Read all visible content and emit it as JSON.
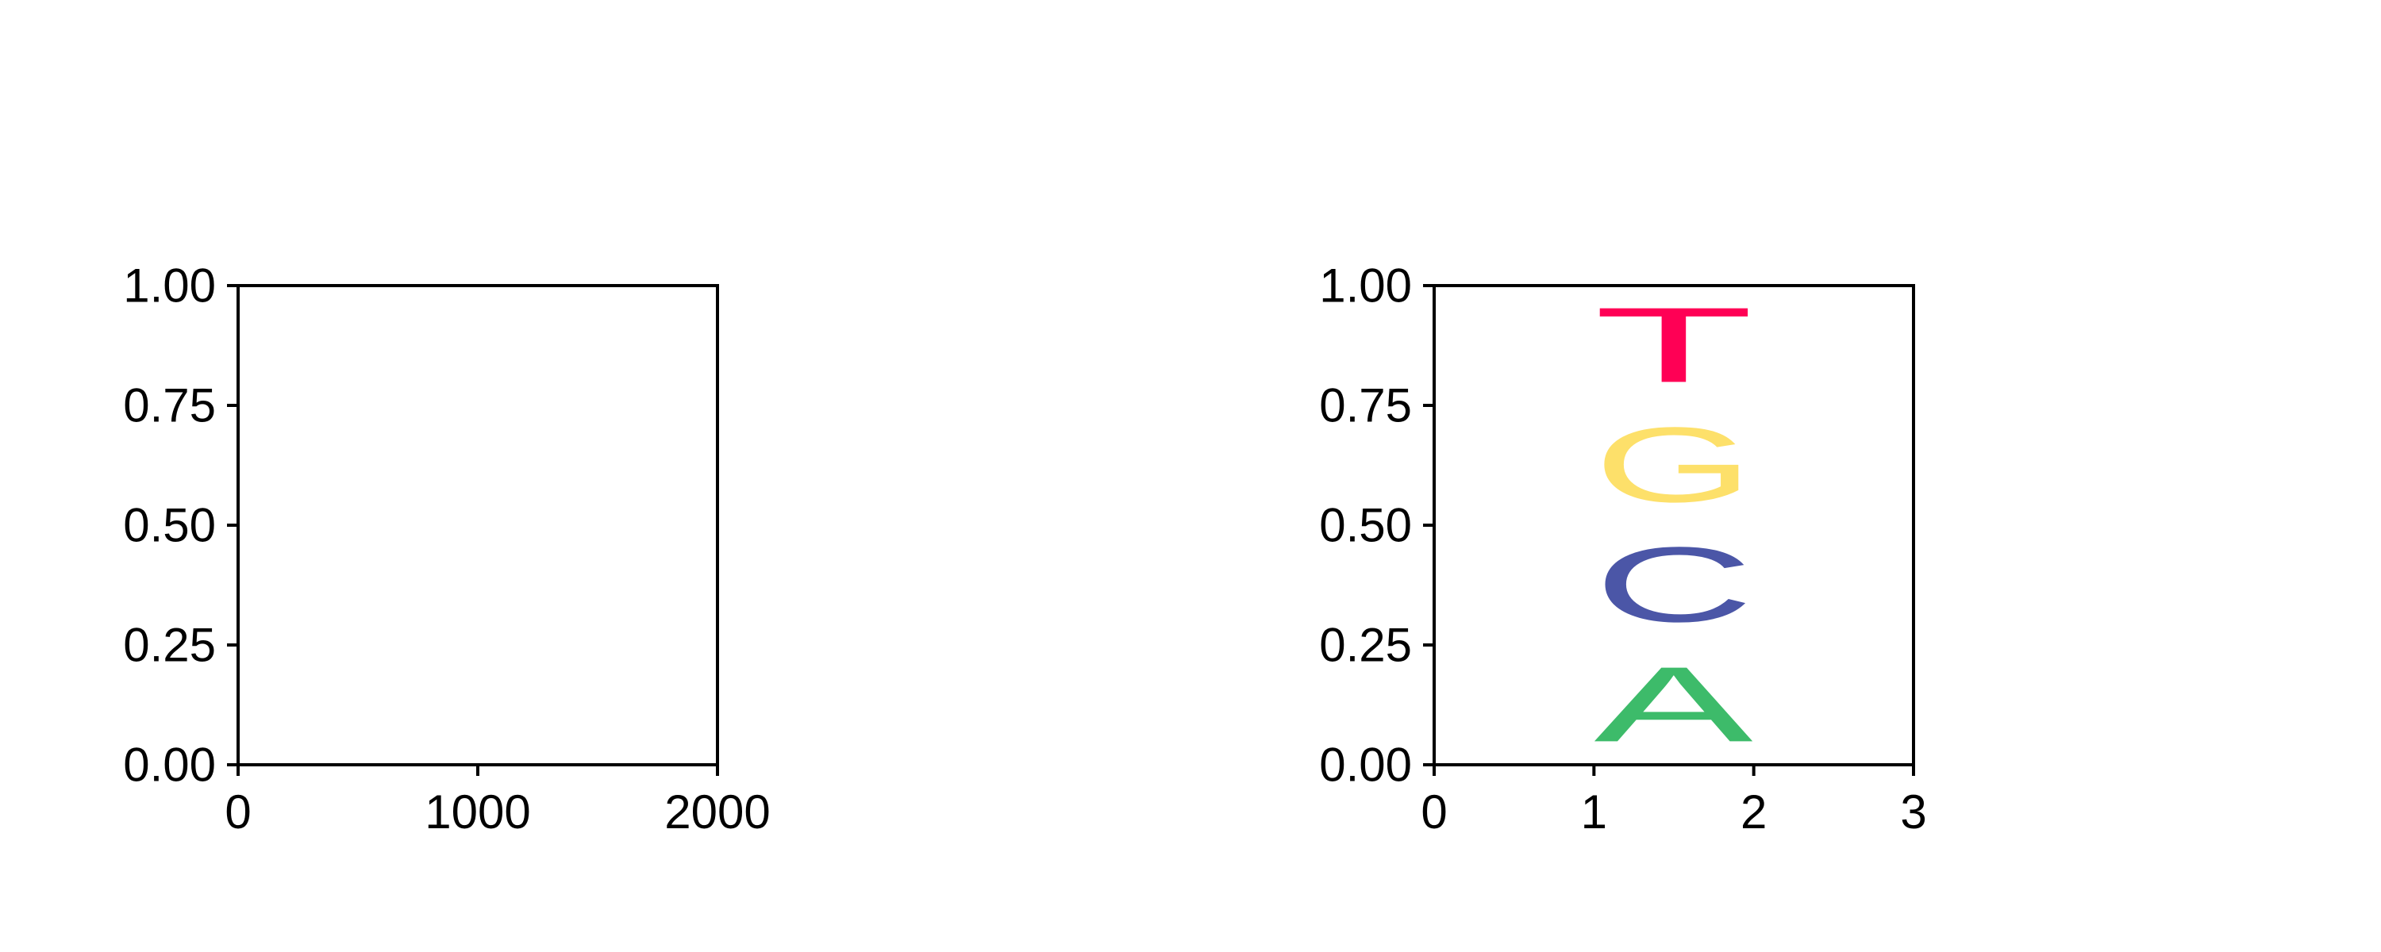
{
  "chart_data": [
    {
      "type": "line",
      "xlim": [
        0,
        2000
      ],
      "ylim": [
        0,
        1
      ],
      "xticks": [
        "0",
        "1000",
        "2000"
      ],
      "yticks": [
        "0.00",
        "0.25",
        "0.50",
        "0.75",
        "1.00"
      ],
      "grid": false,
      "series": []
    },
    {
      "type": "sequence-logo",
      "xlim": [
        0,
        3
      ],
      "ylim": [
        0,
        1
      ],
      "xticks": [
        "0",
        "1",
        "2",
        "3"
      ],
      "yticks": [
        "0.00",
        "0.25",
        "0.50",
        "0.75",
        "1.00"
      ],
      "grid": false,
      "positions": [
        {
          "x_start": 1,
          "x_end": 2,
          "stack": [
            {
              "letter": "A",
              "y_start": 0.0,
              "y_end": 0.25,
              "color": "#3dbb6a"
            },
            {
              "letter": "C",
              "y_start": 0.25,
              "y_end": 0.5,
              "color": "#4b56a7"
            },
            {
              "letter": "G",
              "y_start": 0.5,
              "y_end": 0.75,
              "color": "#fde06a"
            },
            {
              "letter": "T",
              "y_start": 0.75,
              "y_end": 1.0,
              "color": "#ff0055"
            }
          ]
        }
      ]
    }
  ]
}
